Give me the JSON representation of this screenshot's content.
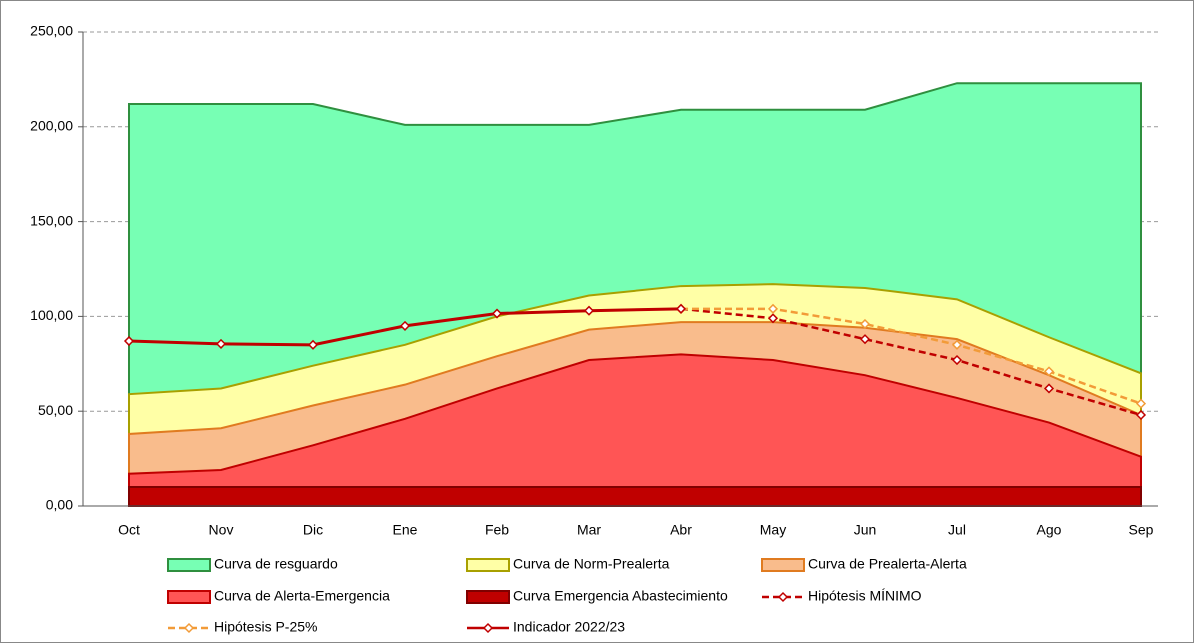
{
  "chart_data": {
    "type": "area",
    "categories": [
      "Oct",
      "Nov",
      "Dic",
      "Ene",
      "Feb",
      "Mar",
      "Abr",
      "May",
      "Jun",
      "Jul",
      "Ago",
      "Sep"
    ],
    "ylim": [
      0,
      250
    ],
    "yticks": [
      {
        "value": 0,
        "label": "0,00"
      },
      {
        "value": 50,
        "label": "50,00"
      },
      {
        "value": 100,
        "label": "100,00"
      },
      {
        "value": 150,
        "label": "150,00"
      },
      {
        "value": 200,
        "label": "200,00"
      },
      {
        "value": 250,
        "label": "250,00"
      }
    ],
    "grid": true,
    "legend": "bottom",
    "series": [
      {
        "name": "Curva de resguardo",
        "type": "area",
        "color": "#77ffb4",
        "stroke": "#2f8f3f",
        "values": [
          212,
          212,
          212,
          201,
          201,
          201,
          209,
          209,
          209,
          223,
          223,
          223
        ]
      },
      {
        "name": "Curva de Norm-Prealerta",
        "type": "area",
        "color": "#ffffa6",
        "stroke": "#a8a000",
        "values": [
          59,
          62,
          74,
          85,
          100,
          111,
          116,
          117,
          115,
          109,
          89,
          70
        ]
      },
      {
        "name": "Curva de Prealerta-Alerta",
        "type": "area",
        "color": "#f9bc8c",
        "stroke": "#e07b20",
        "values": [
          38,
          41,
          53,
          64,
          79,
          93,
          97,
          97,
          94,
          88,
          69,
          48
        ]
      },
      {
        "name": "Curva de Alerta-Emergencia",
        "type": "area",
        "color": "#ff5555",
        "stroke": "#c00000",
        "values": [
          17,
          19,
          32,
          46,
          62,
          77,
          80,
          77,
          69,
          57,
          44,
          26
        ]
      },
      {
        "name": "Curva Emergencia Abastecimiento",
        "type": "area",
        "color": "#c00000",
        "stroke": "#800000",
        "values": [
          10,
          10,
          10,
          10,
          10,
          10,
          10,
          10,
          10,
          10,
          10,
          10
        ]
      },
      {
        "name": "Hipótesis MÍNIMO",
        "type": "line",
        "dashed": true,
        "color": "#c00000",
        "values": [
          null,
          null,
          null,
          null,
          null,
          null,
          104,
          99,
          88,
          77,
          62,
          48
        ]
      },
      {
        "name": "Hipótesis P-25%",
        "type": "line",
        "dashed": true,
        "color": "#f29b38",
        "values": [
          null,
          null,
          null,
          null,
          null,
          null,
          104,
          104,
          96,
          85,
          71,
          54
        ]
      },
      {
        "name": "Indicador 2022/23",
        "type": "line",
        "dashed": false,
        "color": "#c00000",
        "values": [
          87,
          85.5,
          85,
          95,
          101.5,
          103,
          104,
          null,
          null,
          null,
          null,
          null
        ]
      }
    ]
  }
}
